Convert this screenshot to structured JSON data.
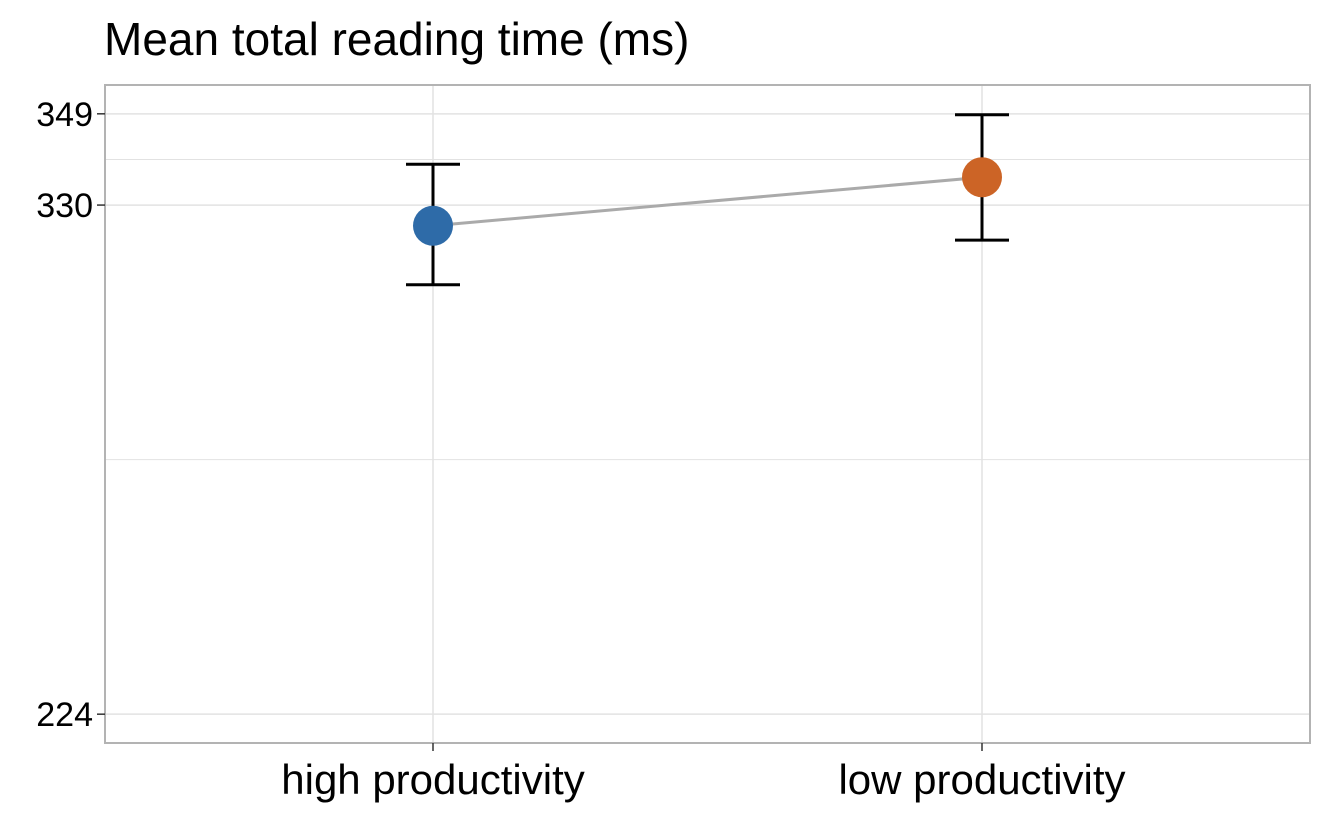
{
  "chart_data": {
    "type": "scatter",
    "title": "Mean total reading time (ms)",
    "xlabel": "",
    "ylabel": "",
    "categories": [
      "high productivity",
      "low productivity"
    ],
    "y_ticks": [
      224,
      330,
      349
    ],
    "ylim": [
      218,
      355
    ],
    "grid": true,
    "connector_line": true,
    "points": [
      {
        "category": "high productivity",
        "mean": 325.7,
        "ci_low": 313.4,
        "ci_high": 338.5,
        "color": "#2e6ba8"
      },
      {
        "category": "low productivity",
        "mean": 335.8,
        "ci_low": 322.7,
        "ci_high": 348.8,
        "color": "#cc6426"
      }
    ],
    "colors": {
      "connector": "#aaaaaa",
      "error_bar": "#000000",
      "grid": "#e2e2e2",
      "panel_border": "#b3b3b3"
    }
  }
}
